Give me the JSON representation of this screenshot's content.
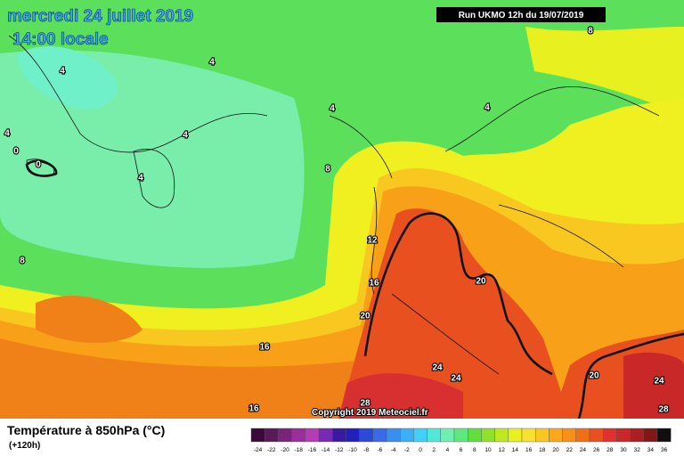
{
  "header": {
    "date": "mercredi 24 juillet 2019",
    "time": "14:00 locale",
    "run": "Run UKMO 12h du 19/07/2019"
  },
  "map": {
    "contour_labels": [
      8,
      4,
      4,
      4,
      4,
      4,
      0,
      0,
      4,
      4,
      8,
      12,
      16,
      20,
      20,
      16,
      24,
      24,
      20,
      24,
      28,
      28,
      16,
      8
    ],
    "copyright": "Copyright 2019 Meteociel.fr"
  },
  "legend": {
    "title": "Température à 850hPa (°C)",
    "lead_time": "(+120h)",
    "ticks": [
      -24,
      -22,
      -20,
      -18,
      -16,
      -14,
      -12,
      -10,
      -8,
      -6,
      -4,
      -2,
      0,
      2,
      4,
      6,
      8,
      10,
      12,
      14,
      16,
      18,
      20,
      22,
      24,
      26,
      28,
      30,
      32,
      34,
      36
    ],
    "colors": [
      "#3a0a3a",
      "#5a1a5a",
      "#7a237a",
      "#9a2e9a",
      "#b43cb4",
      "#7a2ab0",
      "#3a1aa0",
      "#2020c0",
      "#2a4ad8",
      "#3a6ae8",
      "#3a8ef0",
      "#3ab0f8",
      "#40d0f8",
      "#50e8d8",
      "#70f0b0",
      "#60e880",
      "#60e040",
      "#90e030",
      "#c0e820",
      "#e8f020",
      "#f8e030",
      "#f8c820",
      "#f8a818",
      "#f89018",
      "#f07018",
      "#e85020",
      "#e03030",
      "#c82828",
      "#a82020",
      "#801818",
      "#101010"
    ]
  }
}
